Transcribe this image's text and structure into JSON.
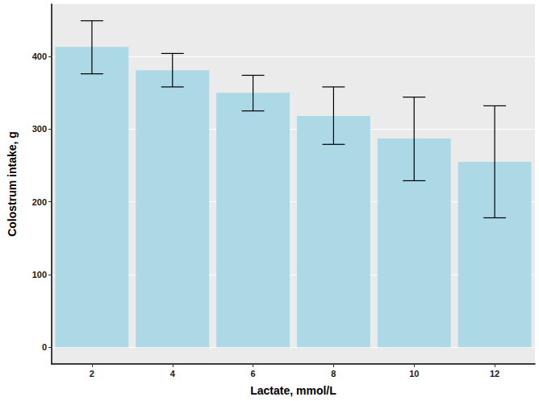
{
  "chart_data": {
    "type": "bar",
    "x_label": "Lactate, mmol/L",
    "y_label": "Colostrum intake, g",
    "categories": [
      "2",
      "4",
      "6",
      "8",
      "10",
      "12"
    ],
    "values": [
      413,
      381,
      350,
      318,
      287,
      255
    ],
    "error_low": [
      376,
      358,
      325,
      279,
      229,
      178
    ],
    "error_high": [
      449,
      404,
      374,
      358,
      344,
      332
    ],
    "color": "#add8e6",
    "ylim": [
      -23,
      472
    ],
    "yticks": [
      0,
      100,
      200,
      300,
      400
    ],
    "grid": true
  }
}
